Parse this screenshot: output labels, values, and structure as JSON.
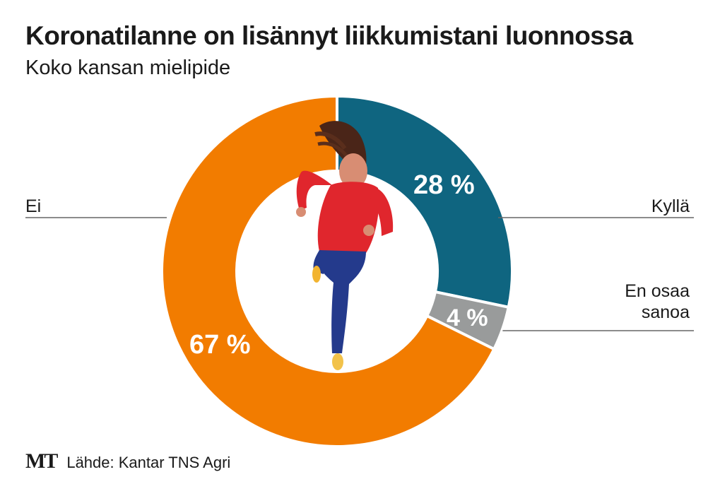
{
  "header": {
    "title": "Koronatilanne on lisännyt liikkumistani luonnossa",
    "subtitle": "Koko kansan mielipide"
  },
  "footer": {
    "logo": "MT",
    "source": "Lähde: Kantar TNS Agri"
  },
  "chart_data": {
    "type": "pie",
    "donut": true,
    "title": "Koronatilanne on lisännyt liikkumistani luonnossa",
    "subtitle": "Koko kansan mielipide",
    "slices": [
      {
        "key": "kylla",
        "label": "Kyllä",
        "value": 28,
        "value_label": "28 %",
        "color": "#0f6580"
      },
      {
        "key": "en-osaa-sanoa",
        "label": "En osaa sanoa",
        "label_lines": [
          "En osaa",
          "sanoa"
        ],
        "value": 4,
        "value_label": "4 %",
        "color": "#999b9b"
      },
      {
        "key": "ei",
        "label": "Ei",
        "value": 67,
        "value_label": "67 %",
        "color": "#f27c00"
      }
    ],
    "center_image": "woman-running-illustration"
  }
}
